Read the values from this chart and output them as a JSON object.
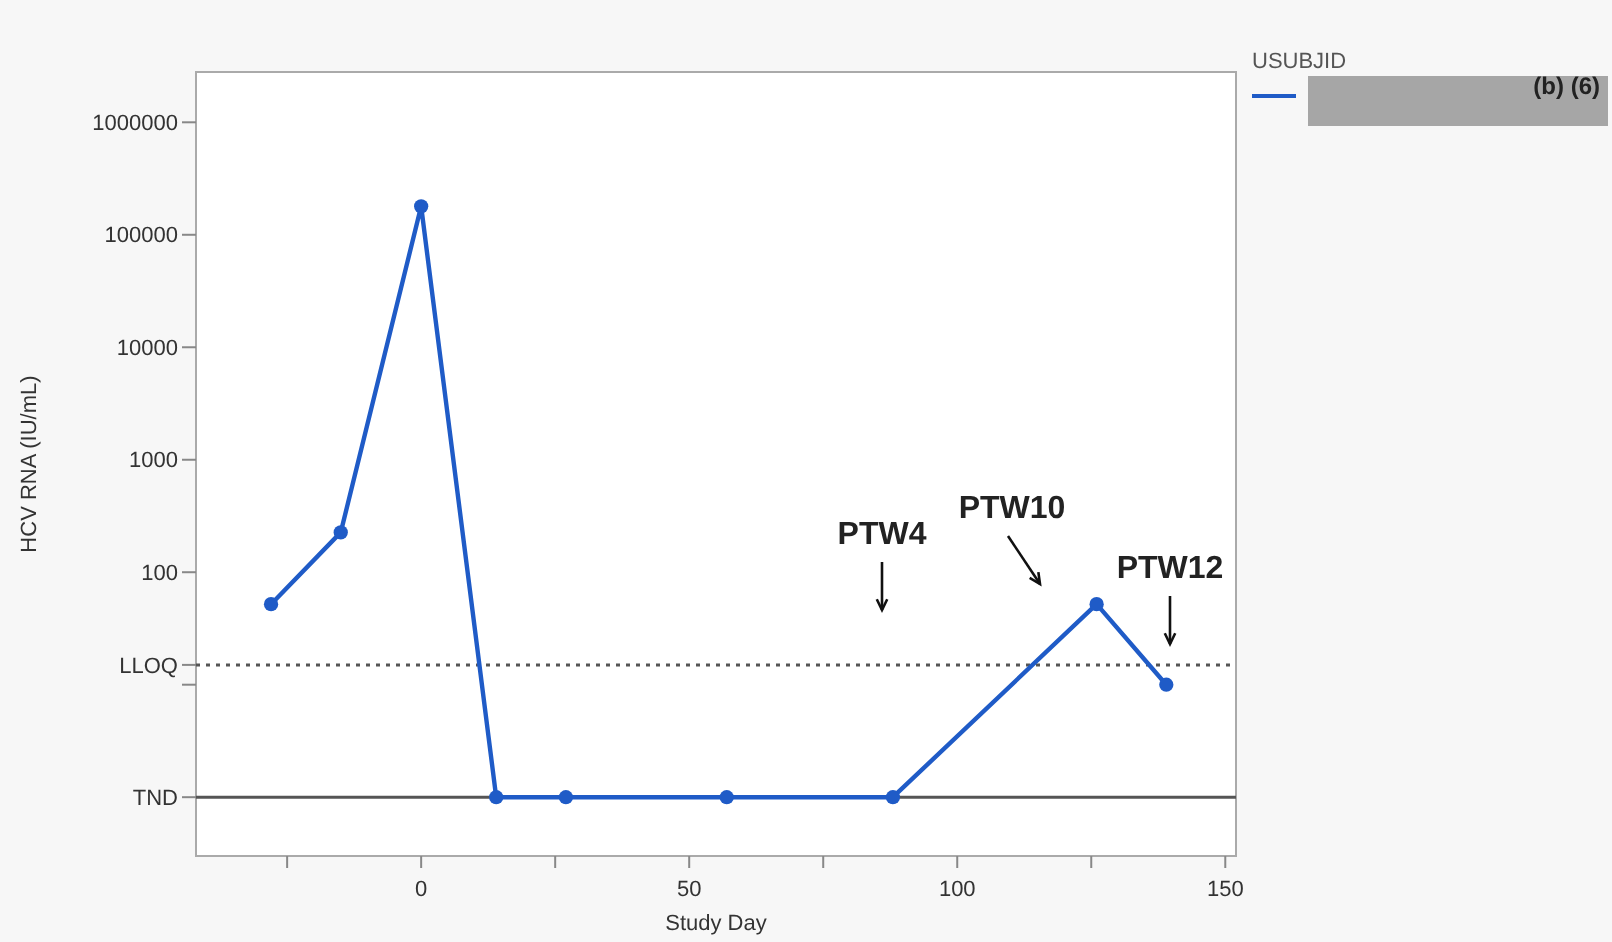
{
  "chart_data": {
    "type": "line",
    "xlabel": "Study Day",
    "ylabel": "HCV RNA (IU/mL)",
    "legend_title": "USUBJID",
    "legend": "top right",
    "log": "y",
    "marker": "circle",
    "line_style": "solid",
    "x": [
      -28,
      -15,
      0,
      14,
      27,
      57,
      88,
      126,
      139
    ],
    "series": [
      {
        "name": "(b) (6)",
        "color": "#1f5bc7",
        "values": [
          52,
          226,
          179000,
          1,
          1,
          1,
          1,
          52,
          10
        ]
      }
    ],
    "xlim": [
      -42,
      152
    ],
    "xticks": [
      {
        "value": -25,
        "label": null
      },
      0,
      {
        "value": 25,
        "label": null
      },
      50,
      {
        "value": 75,
        "label": null
      },
      100,
      {
        "value": 125,
        "label": null
      },
      150
    ],
    "ylim": [
      0.3,
      2800000
    ],
    "yticks": [
      {
        "value": 1,
        "label": "TND"
      },
      {
        "value": 10,
        "label": null
      },
      {
        "value": 15,
        "label": "LLOQ"
      },
      100,
      1000,
      10000,
      100000,
      1000000
    ],
    "ref_lines": [
      {
        "axis": "y",
        "value": 15,
        "color": "#555555",
        "line_style": "dotted"
      },
      {
        "axis": "y",
        "value": 1,
        "color": "#555555",
        "line_style": "solid"
      }
    ],
    "annotations": [
      "PTW4",
      "PTW10",
      "PTW12"
    ]
  }
}
